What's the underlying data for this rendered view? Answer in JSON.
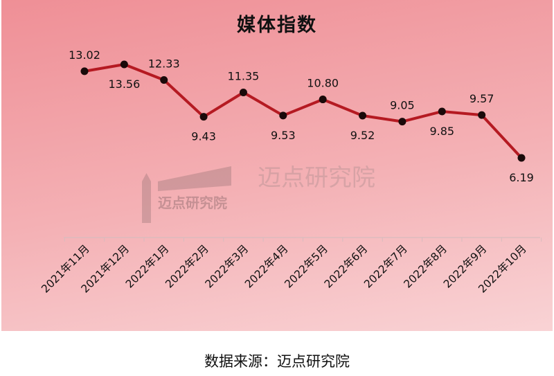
{
  "chart_data": {
    "type": "line",
    "title": "媒体指数",
    "categories": [
      "2021年11月",
      "2021年12月",
      "2022年1月",
      "2022年2月",
      "2022年3月",
      "2022年4月",
      "2022年5月",
      "2022年6月",
      "2022年7月",
      "2022年8月",
      "2022年9月",
      "2022年10月"
    ],
    "series": [
      {
        "values": [
          13.02,
          13.56,
          12.33,
          9.43,
          11.35,
          9.53,
          10.8,
          9.52,
          9.05,
          9.85,
          9.57,
          6.19
        ]
      }
    ],
    "value_labels": [
      "13.02",
      "13.56",
      "12.33",
      "9.43",
      "11.35",
      "9.53",
      "10.80",
      "9.52",
      "9.05",
      "9.85",
      "9.57",
      "6.19"
    ],
    "ylim": [
      4.5,
      15.5
    ],
    "grid": false,
    "legend": "none",
    "line_color": "#b51a22",
    "marker_color": "#1a0a0a"
  },
  "watermark": {
    "logo_text": "迈点研究院",
    "large_text": "迈点研究院"
  },
  "source_note": "数据来源：迈点研究院"
}
